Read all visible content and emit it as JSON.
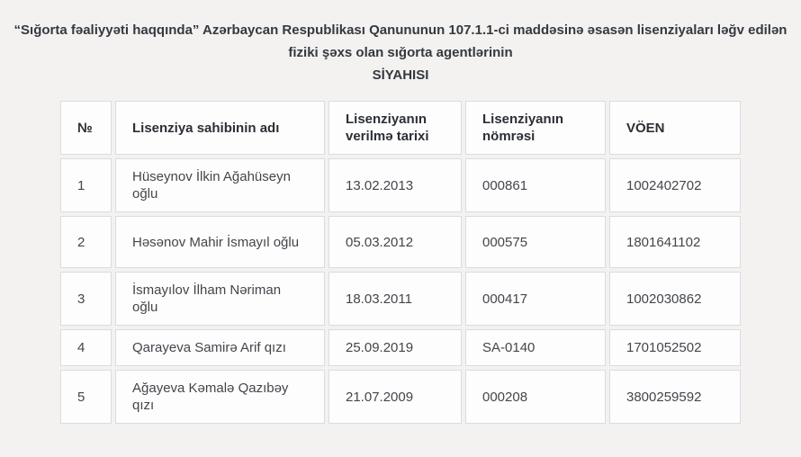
{
  "title": {
    "line1": "“Sığorta fəaliyyəti haqqında” Azərbaycan Respublikası Qanununun 107.1.1-ci maddəsinə əsasən lisenziyaları ləğv edilən",
    "line2": "fiziki şəxs olan sığorta agentlərinin",
    "line3": "SİYAHISI"
  },
  "table": {
    "headers": [
      "№",
      "Lisenziya sahibinin adı",
      "Lisenziyanın verilmə tarixi",
      "Lisenziyanın nömrəsi",
      "VÖEN"
    ],
    "rows": [
      [
        "1",
        "Hüseynov İlkin Ağahüseyn oğlu",
        "13.02.2013",
        "000861",
        "1002402702"
      ],
      [
        "2",
        "Həsənov Mahir İsmayıl oğlu",
        "05.03.2012",
        "000575",
        "1801641102"
      ],
      [
        "3",
        "İsmayılov İlham Nəriman oğlu",
        "18.03.2011",
        "000417",
        "1002030862"
      ],
      [
        "4",
        "Qarayeva Samirə Arif qızı",
        "25.09.2019",
        "SA-0140",
        "1701052502"
      ],
      [
        "5",
        "Ağayeva Kəmalə Qazıbəy qızı",
        "21.07.2009",
        "000208",
        "3800259592"
      ]
    ]
  },
  "colors": {
    "page_bg": "#f3f2f0",
    "cell_bg": "#fdfdfd",
    "cell_border": "#d9dce0",
    "header_text": "#2b2f35",
    "body_text": "#42464b",
    "title_text": "#35393f"
  }
}
